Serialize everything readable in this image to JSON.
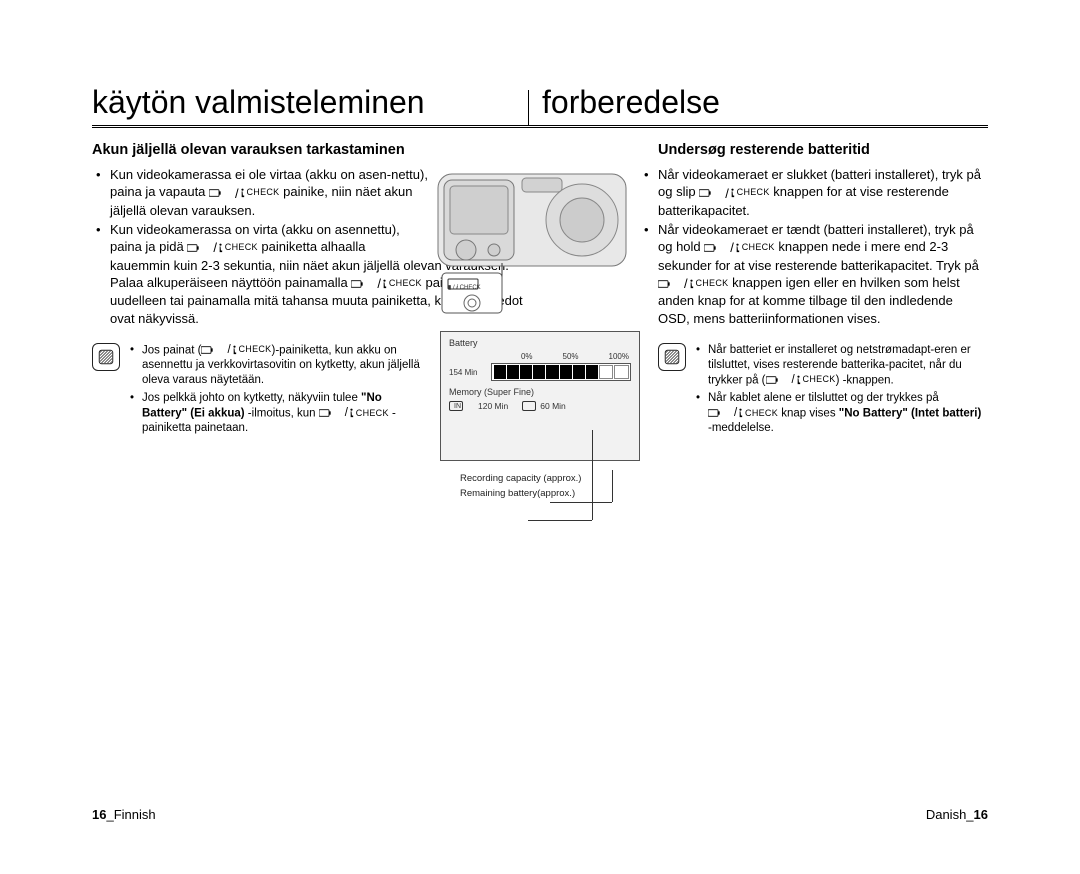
{
  "left": {
    "title": "käytön valmisteleminen",
    "subtitle": "Akun jäljellä olevan varauksen tarkastaminen",
    "body": [
      "Kun videokamerassa ei ole virtaa (akku on asen-nettu), paina ja vapauta {ICON} painike, niin näet akun jäljellä olevan varauksen.",
      "Kun videokamerassa on virta (akku on asennettu), paina ja pidä {ICON} painiketta alhaalla kauemmin kuin 2-3 sekuntia, niin näet akun jäljellä olevan varauksen. Palaa alkuperäiseen näyttöön painamalla {ICON} painiketta uudelleen tai painamalla mitä tahansa muuta painiketta, kun akun tiedot ovat näkyvissä."
    ],
    "notes": [
      "Jos painat ({ICON})-painiketta, kun akku on asennettu ja verkkovirtasovitin on kytketty, akun jäljellä oleva varaus näytetään.",
      "Jos pelkkä johto on kytketty, näkyviin tulee \"No Battery\" (Ei akkua) -ilmoitus, kun {ICON} -painiketta painetaan."
    ],
    "note_bold": "\"No Battery\" (Ei akkua)",
    "footer_page": "16",
    "footer_lang": "_Finnish"
  },
  "right": {
    "title": "forberedelse",
    "subtitle": "Undersøg resterende batteritid",
    "body": [
      "Når videokameraet er slukket (batteri installeret), tryk på og slip {ICON} knappen for at vise resterende batterikapacitet.",
      "Når videokameraet er tændt (batteri installeret), tryk på og hold {ICON} knappen nede i mere end 2-3 sekunder for at vise resterende batterikapacitet. Tryk på {ICON} knappen igen eller en hvilken som helst anden knap for at komme tilbage til den indledende OSD, mens batteriinformationen vises."
    ],
    "notes": [
      "Når batteriet er installeret og netstrømadapt-eren er tilsluttet, vises resterende batterika-pacitet, når du trykker på ({ICON}) -knappen.",
      "Når kablet alene er tilsluttet og der trykkes på {ICON} knap vises \"No Battery\" (Intet batteri) -meddelelse."
    ],
    "note_bold": "\"No Battery\" (Intet batteri)",
    "footer_lang": "Danish_",
    "footer_page": "16"
  },
  "icon_glyph": {
    "battery_check_label": "CHECK"
  },
  "figure": {
    "lcd": {
      "title": "Battery",
      "pct_labels": [
        "0%",
        "50%",
        "100%"
      ],
      "remaining_min": "154 Min",
      "segments_total": 10,
      "segments_full": 8,
      "memory_title": "Memory (Super Fine)",
      "mem_items": [
        {
          "chip_label": "IN",
          "value": "120 Min"
        },
        {
          "chip_label": "",
          "value": "60 Min"
        }
      ]
    },
    "labels": {
      "recording": "Recording capacity (approx.)",
      "remaining": "Remaining battery(approx.)"
    },
    "colors": {
      "panel_bg": "#f2f2f2",
      "border": "#555555",
      "seg_full": "#000000",
      "seg_empty_border": "#888888"
    }
  }
}
